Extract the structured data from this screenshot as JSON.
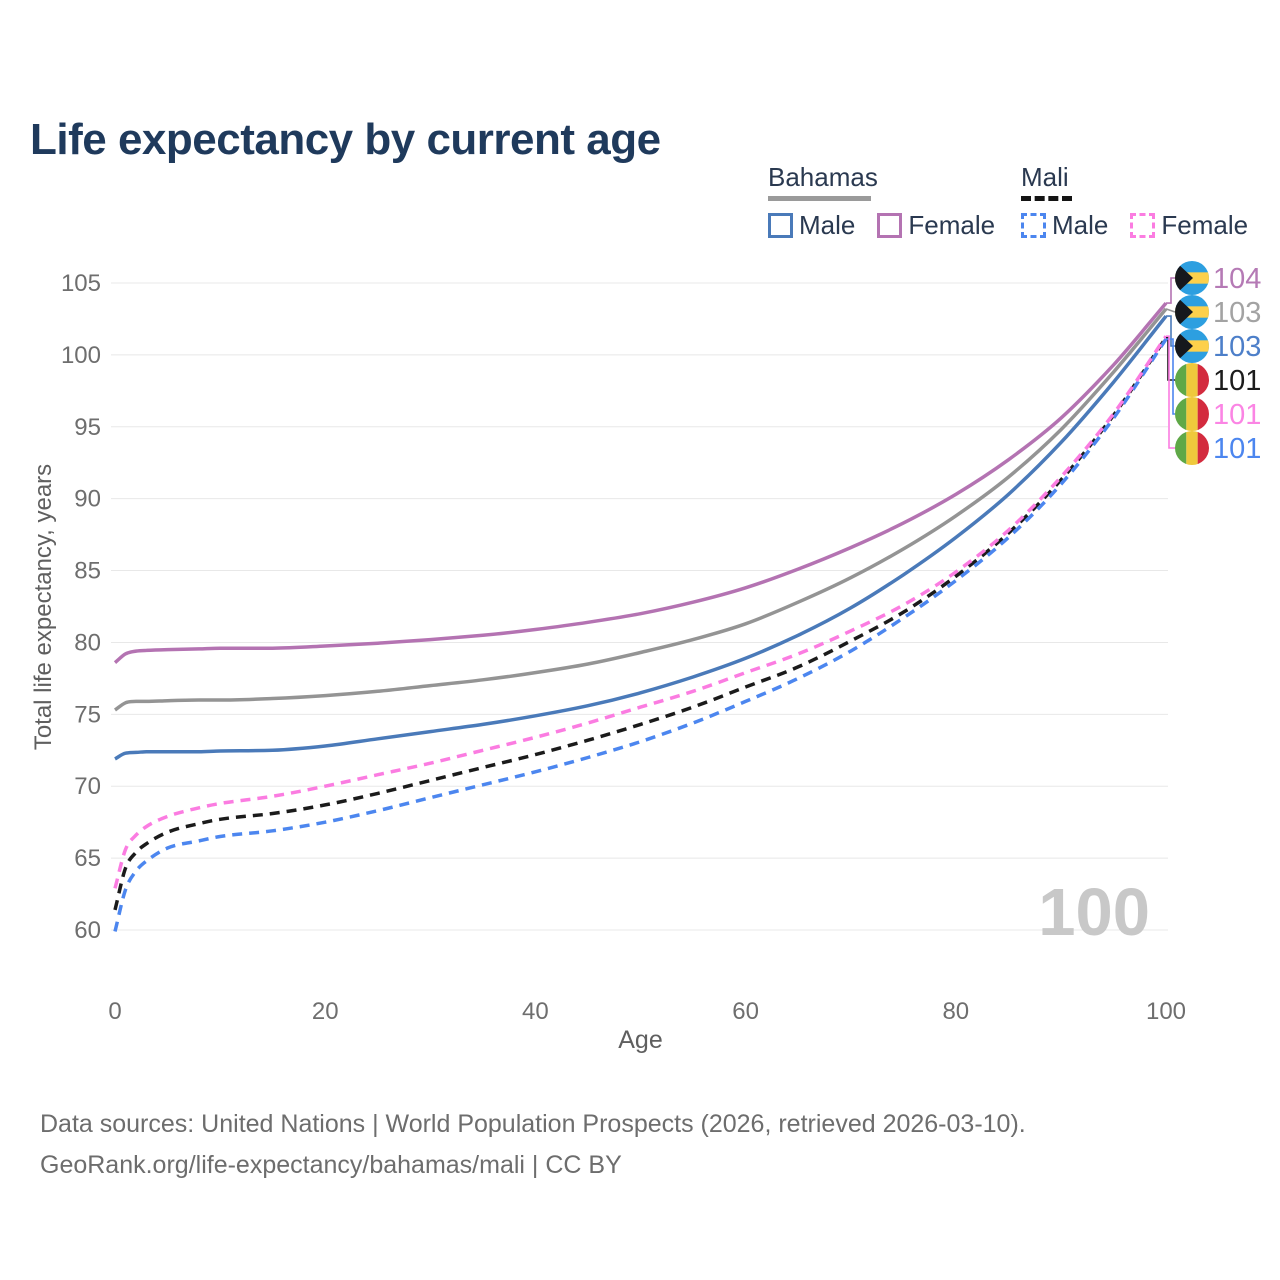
{
  "title": "Life expectancy by current age",
  "watermark": "100",
  "footer": {
    "line1": "Data sources: United Nations | World Population Prospects (2026, retrieved 2026-03-10).",
    "line2": "GeoRank.org/life-expectancy/bahamas/mali | CC BY"
  },
  "legend": {
    "groups": [
      {
        "label": "Bahamas",
        "rule_color": "#9a9a9a",
        "rule_style": "solid",
        "items": [
          {
            "label": "Male",
            "color": "#4a7ab9",
            "style": "solid"
          },
          {
            "label": "Female",
            "color": "#b473b2",
            "style": "solid"
          }
        ]
      },
      {
        "label": "Mali",
        "rule_color": "#141414",
        "rule_style": "dashed",
        "items": [
          {
            "label": "Male",
            "color": "#4c86ef",
            "style": "dashed"
          },
          {
            "label": "Female",
            "color": "#fb7ce1",
            "style": "dashed"
          }
        ]
      }
    ]
  },
  "flag_colors": {
    "bahamas_blue": "#2d9fe0",
    "bahamas_yellow": "#fdd04b",
    "bahamas_black": "#16181d",
    "mali_green": "#5fa847",
    "mali_yellow": "#efc93c",
    "mali_red": "#d32b3e"
  },
  "chart_data": {
    "type": "line",
    "title": "Life expectancy by current age",
    "xlabel": "Age",
    "ylabel": "Total life expectancy, years",
    "xlim": [
      0,
      100
    ],
    "ylim": [
      60,
      105
    ],
    "x_ticks": [
      0,
      20,
      40,
      60,
      80,
      100
    ],
    "y_ticks": [
      60,
      65,
      70,
      75,
      80,
      85,
      90,
      95,
      100,
      105
    ],
    "grid": "horizontal",
    "legend_position": "top-right",
    "tick_color": "#6e6e6e",
    "grid_color": "#e8e8e8",
    "ages": [
      0,
      1,
      2,
      3,
      5,
      8,
      10,
      15,
      20,
      25,
      30,
      35,
      40,
      45,
      50,
      55,
      60,
      65,
      70,
      75,
      80,
      85,
      90,
      95,
      100
    ],
    "series": [
      {
        "name": "Bahamas Female",
        "country": "Bahamas",
        "sex": "Female",
        "color": "#b473b2",
        "dash": false,
        "end_label": "104",
        "values": [
          78.6,
          79.2,
          79.4,
          79.45,
          79.5,
          79.55,
          79.6,
          79.6,
          79.75,
          79.95,
          80.2,
          80.5,
          80.9,
          81.4,
          82.0,
          82.8,
          83.8,
          85.1,
          86.6,
          88.3,
          90.3,
          92.7,
          95.6,
          99.3,
          103.6
        ]
      },
      {
        "name": "Bahamas All",
        "country": "Bahamas",
        "sex": "All",
        "color": "#949494",
        "dash": false,
        "end_label": "103",
        "values": [
          75.3,
          75.8,
          75.9,
          75.9,
          75.95,
          76.0,
          76.0,
          76.1,
          76.3,
          76.6,
          77.0,
          77.4,
          77.9,
          78.5,
          79.3,
          80.2,
          81.3,
          82.8,
          84.5,
          86.5,
          88.8,
          91.5,
          94.8,
          98.8,
          103.2
        ]
      },
      {
        "name": "Bahamas Male",
        "country": "Bahamas",
        "sex": "Male",
        "color": "#4a7ab9",
        "dash": false,
        "end_label": "103",
        "values": [
          71.9,
          72.3,
          72.35,
          72.4,
          72.4,
          72.4,
          72.45,
          72.5,
          72.8,
          73.3,
          73.8,
          74.3,
          74.9,
          75.6,
          76.5,
          77.6,
          78.9,
          80.5,
          82.4,
          84.7,
          87.3,
          90.3,
          93.9,
          98.1,
          102.7
        ]
      },
      {
        "name": "Mali All",
        "country": "Mali",
        "sex": "All",
        "color": "#1b1b1b",
        "dash": true,
        "end_label": "101",
        "values": [
          61.4,
          64.3,
          65.4,
          66.0,
          66.8,
          67.4,
          67.7,
          68.1,
          68.7,
          69.5,
          70.4,
          71.3,
          72.2,
          73.2,
          74.3,
          75.5,
          76.9,
          78.3,
          80.1,
          82.1,
          84.6,
          87.6,
          91.3,
          95.8,
          101.2
        ]
      },
      {
        "name": "Mali Male",
        "country": "Mali",
        "sex": "Male",
        "color": "#4c86ef",
        "dash": true,
        "end_label": "101",
        "values": [
          59.9,
          62.8,
          64.1,
          64.8,
          65.7,
          66.2,
          66.5,
          66.9,
          67.5,
          68.3,
          69.2,
          70.1,
          71.0,
          72.0,
          73.1,
          74.4,
          75.9,
          77.5,
          79.4,
          81.7,
          84.3,
          87.3,
          91.0,
          95.6,
          101.1
        ]
      },
      {
        "name": "Mali Female",
        "country": "Mali",
        "sex": "Female",
        "color": "#fb7ce1",
        "dash": true,
        "end_label": "101",
        "values": [
          62.9,
          65.6,
          66.6,
          67.2,
          67.9,
          68.5,
          68.8,
          69.3,
          70.0,
          70.8,
          71.6,
          72.5,
          73.4,
          74.4,
          75.5,
          76.6,
          77.9,
          79.2,
          80.8,
          82.6,
          84.9,
          87.8,
          91.5,
          95.9,
          101.3
        ]
      }
    ],
    "right_labels": [
      {
        "value": "104",
        "flag": "bahamas",
        "series": 0,
        "color": "#b57ab5"
      },
      {
        "value": "103",
        "flag": "bahamas",
        "series": 1,
        "color": "#a3a3a3"
      },
      {
        "value": "103",
        "flag": "bahamas",
        "series": 2,
        "color": "#4d7fc9"
      },
      {
        "value": "101",
        "flag": "mali",
        "series": 3,
        "color": "#1c1c1c"
      },
      {
        "value": "101",
        "flag": "mali",
        "series": 4,
        "color": "#fb85e4"
      },
      {
        "value": "101",
        "flag": "mali",
        "series": 5,
        "color": "#4c86ef"
      }
    ]
  }
}
